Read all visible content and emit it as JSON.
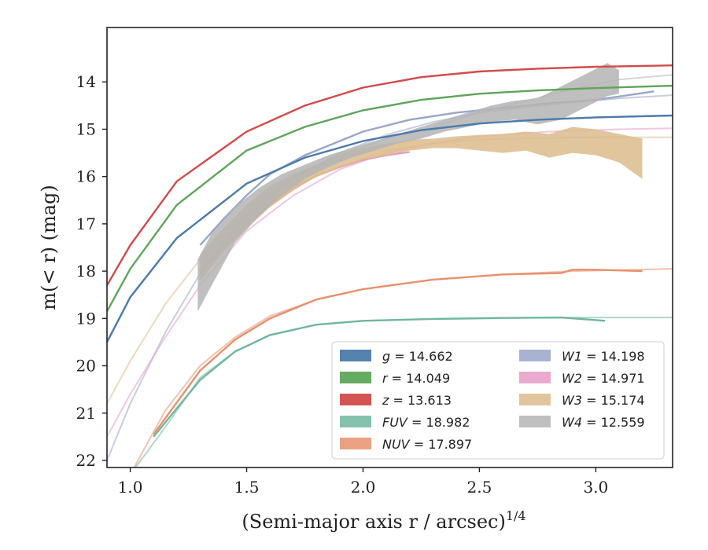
{
  "chart_data": {
    "type": "line",
    "xlabel": "(Semi-major axis r / arcsec)",
    "xlabel_sup": "1/4",
    "ylabel": "m(< r) (mag)",
    "xlim": [
      0.9,
      3.33
    ],
    "ylim": [
      22.15,
      12.85
    ],
    "y_inverted": true,
    "xticks": [
      1.0,
      1.5,
      2.0,
      2.5,
      3.0
    ],
    "xtick_labels": [
      "1.0",
      "1.5",
      "2.0",
      "2.5",
      "3.0"
    ],
    "yticks": [
      14,
      15,
      16,
      17,
      18,
      19,
      20,
      21,
      22
    ],
    "ytick_labels": [
      "14",
      "15",
      "16",
      "17",
      "18",
      "19",
      "20",
      "21",
      "22"
    ],
    "grid": false,
    "legend": {
      "placement": "lower-right",
      "columns": 2
    },
    "series": [
      {
        "name": "g = 14.662",
        "label_var": "g",
        "label_val": "= 14.662",
        "color": "#4c7bab",
        "kind": "line",
        "model": {
          "x": [
            0.9,
            1.0,
            1.2,
            1.5,
            1.75,
            2.0,
            2.25,
            2.5,
            2.75,
            3.0,
            3.33
          ],
          "y": [
            19.5,
            18.55,
            17.3,
            16.15,
            15.6,
            15.25,
            15.02,
            14.88,
            14.8,
            14.75,
            14.71
          ]
        },
        "data": {
          "x": [
            0.9,
            1.0,
            1.2,
            1.5,
            1.75,
            2.0,
            2.25,
            2.5,
            2.75,
            3.0,
            3.33
          ],
          "y": [
            19.5,
            18.55,
            17.3,
            16.15,
            15.6,
            15.25,
            15.02,
            14.88,
            14.8,
            14.75,
            14.71
          ]
        }
      },
      {
        "name": "r = 14.049",
        "label_var": "r",
        "label_val": "= 14.049",
        "color": "#5fa55a",
        "kind": "line",
        "model": {
          "x": [
            0.9,
            1.0,
            1.2,
            1.5,
            1.75,
            2.0,
            2.25,
            2.5,
            2.75,
            3.0,
            3.33
          ],
          "y": [
            18.85,
            17.95,
            16.6,
            15.45,
            14.95,
            14.6,
            14.38,
            14.25,
            14.18,
            14.13,
            14.08
          ]
        },
        "data": {
          "x": [
            0.9,
            1.0,
            1.2,
            1.5,
            1.75,
            2.0,
            2.25,
            2.5,
            2.75,
            3.0,
            3.33
          ],
          "y": [
            18.85,
            17.95,
            16.6,
            15.45,
            14.95,
            14.6,
            14.38,
            14.25,
            14.18,
            14.13,
            14.08
          ]
        }
      },
      {
        "name": "z = 13.613",
        "label_var": "z",
        "label_val": "= 13.613",
        "color": "#d24b4b",
        "kind": "line",
        "model": {
          "x": [
            0.9,
            1.0,
            1.2,
            1.5,
            1.75,
            2.0,
            2.25,
            2.5,
            2.75,
            3.0,
            3.33
          ],
          "y": [
            18.3,
            17.45,
            16.1,
            15.05,
            14.5,
            14.12,
            13.9,
            13.78,
            13.72,
            13.68,
            13.65
          ]
        },
        "data": {
          "x": [
            0.9,
            1.0,
            1.2,
            1.5,
            1.75,
            2.0,
            2.25,
            2.5,
            2.75,
            3.0,
            3.33
          ],
          "y": [
            18.3,
            17.45,
            16.1,
            15.05,
            14.5,
            14.12,
            13.9,
            13.78,
            13.72,
            13.68,
            13.65
          ]
        }
      },
      {
        "name": "FUV = 18.982",
        "label_var": "FUV",
        "label_val": "= 18.982",
        "color": "#6fb7a0",
        "kind": "line",
        "model": {
          "x": [
            1.0,
            1.15,
            1.3,
            1.45,
            1.6,
            1.8,
            2.0,
            2.3,
            2.6,
            2.9,
            3.33
          ],
          "y": [
            22.3,
            21.3,
            20.25,
            19.7,
            19.35,
            19.13,
            19.05,
            19.01,
            18.99,
            18.98,
            18.98
          ]
        },
        "data": {
          "x": [
            1.1,
            1.3,
            1.45,
            1.6,
            1.8,
            2.0,
            2.3,
            2.6,
            2.85,
            3.04
          ],
          "y": [
            21.5,
            20.3,
            19.7,
            19.35,
            19.13,
            19.05,
            19.01,
            18.99,
            18.98,
            19.05
          ]
        }
      },
      {
        "name": "NUV = 17.897",
        "label_var": "NUV",
        "label_val": "= 17.897",
        "color": "#e8906c",
        "kind": "line",
        "model": {
          "x": [
            1.0,
            1.15,
            1.3,
            1.45,
            1.6,
            1.8,
            2.0,
            2.3,
            2.6,
            2.9,
            3.33
          ],
          "y": [
            22.3,
            20.95,
            20.0,
            19.4,
            18.95,
            18.6,
            18.38,
            18.18,
            18.07,
            18.0,
            17.95
          ]
        },
        "data": {
          "x": [
            1.1,
            1.3,
            1.45,
            1.6,
            1.8,
            2.0,
            2.3,
            2.6,
            2.85,
            2.9,
            3.0,
            3.2
          ],
          "y": [
            21.45,
            20.1,
            19.45,
            19.0,
            18.6,
            18.38,
            18.18,
            18.07,
            18.04,
            17.97,
            17.97,
            18.0
          ]
        }
      },
      {
        "name": "W1 = 14.198",
        "label_var": "W1",
        "label_val": "= 14.198",
        "color": "#98a6c9",
        "kind": "line",
        "model": {
          "x": [
            0.9,
            1.0,
            1.15,
            1.3,
            1.5,
            1.7,
            1.9,
            2.1,
            2.3,
            2.5,
            2.8,
            3.1,
            3.33
          ],
          "y": [
            22.0,
            20.8,
            19.3,
            18.05,
            16.85,
            16.05,
            15.5,
            15.12,
            14.85,
            14.65,
            14.48,
            14.35,
            14.28
          ]
        },
        "data": {
          "x": [
            1.3,
            1.4,
            1.5,
            1.6,
            1.75,
            1.9,
            2.0,
            2.2,
            2.4,
            2.6,
            2.8,
            3.0,
            3.25
          ],
          "y": [
            17.45,
            16.9,
            16.4,
            15.95,
            15.55,
            15.25,
            15.05,
            14.8,
            14.65,
            14.55,
            14.45,
            14.38,
            14.2
          ]
        }
      },
      {
        "name": "W2 = 14.971",
        "label_var": "W2",
        "label_val": "= 14.971",
        "color": "#e59bc4",
        "kind": "line",
        "model": {
          "x": [
            0.9,
            1.0,
            1.15,
            1.3,
            1.5,
            1.7,
            1.9,
            2.1,
            2.3,
            2.5,
            2.8,
            3.1,
            3.33
          ],
          "y": [
            21.5,
            20.6,
            19.4,
            18.3,
            17.15,
            16.4,
            15.85,
            15.5,
            15.3,
            15.15,
            15.05,
            15.0,
            14.98
          ]
        },
        "data": {
          "x": [
            1.3,
            1.4,
            1.5,
            1.6,
            1.7,
            1.8,
            1.9,
            2.0,
            2.1,
            2.2
          ],
          "y": [
            18.05,
            17.5,
            17.0,
            16.6,
            16.25,
            15.98,
            15.8,
            15.65,
            15.55,
            15.48
          ]
        }
      },
      {
        "name": "W3 = 15.174",
        "label_var": "W3",
        "label_val": "= 15.174",
        "color": "#dcbb8c",
        "kind": "band",
        "model": {
          "x": [
            0.9,
            1.0,
            1.15,
            1.3,
            1.5,
            1.7,
            1.9,
            2.1,
            2.3,
            2.5,
            2.8,
            3.1,
            3.33
          ],
          "y": [
            20.8,
            19.9,
            18.7,
            17.75,
            16.9,
            16.2,
            15.8,
            15.45,
            15.3,
            15.22,
            15.18,
            15.17,
            15.17
          ]
        },
        "band": {
          "x": [
            1.3,
            1.4,
            1.5,
            1.6,
            1.7,
            1.8,
            1.9,
            2.0,
            2.1,
            2.2,
            2.3,
            2.4,
            2.5,
            2.6,
            2.7,
            2.8,
            2.9,
            3.0,
            3.1,
            3.2
          ],
          "lo": [
            17.65,
            17.1,
            16.6,
            16.2,
            15.95,
            15.75,
            15.55,
            15.4,
            15.3,
            15.22,
            15.2,
            15.15,
            15.12,
            15.1,
            15.05,
            15.1,
            14.95,
            15.0,
            15.1,
            15.2
          ],
          "hi": [
            18.2,
            17.6,
            17.1,
            16.65,
            16.3,
            16.0,
            15.8,
            15.65,
            15.55,
            15.45,
            15.4,
            15.4,
            15.45,
            15.5,
            15.45,
            15.6,
            15.5,
            15.55,
            15.7,
            16.05
          ]
        }
      },
      {
        "name": "W4 = 12.559",
        "label_var": "W4",
        "label_val": "= 12.559",
        "color": "#b4b4b4",
        "kind": "band",
        "model": {
          "x": [
            1.3,
            1.5,
            1.7,
            1.9,
            2.1,
            2.3,
            2.5,
            2.7,
            2.9,
            3.1,
            3.33
          ],
          "y": [
            18.0,
            16.8,
            16.0,
            15.55,
            15.2,
            14.95,
            14.65,
            14.4,
            14.15,
            13.95,
            13.85
          ]
        },
        "band": {
          "x": [
            1.29,
            1.35,
            1.45,
            1.55,
            1.65,
            1.75,
            1.85,
            1.95,
            2.05,
            2.15,
            2.25,
            2.35,
            2.45,
            2.55,
            2.65,
            2.75,
            2.85,
            2.95,
            3.05,
            3.1
          ],
          "lo": [
            17.75,
            17.2,
            16.65,
            16.25,
            15.95,
            15.75,
            15.55,
            15.4,
            15.25,
            15.1,
            14.95,
            14.8,
            14.65,
            14.5,
            14.4,
            14.35,
            14.1,
            13.85,
            13.6,
            13.75
          ],
          "hi": [
            18.85,
            18.3,
            17.4,
            16.85,
            16.4,
            16.05,
            15.8,
            15.6,
            15.45,
            15.3,
            15.2,
            15.05,
            14.95,
            14.85,
            14.8,
            14.9,
            14.8,
            14.55,
            14.3,
            14.25
          ]
        }
      }
    ]
  }
}
